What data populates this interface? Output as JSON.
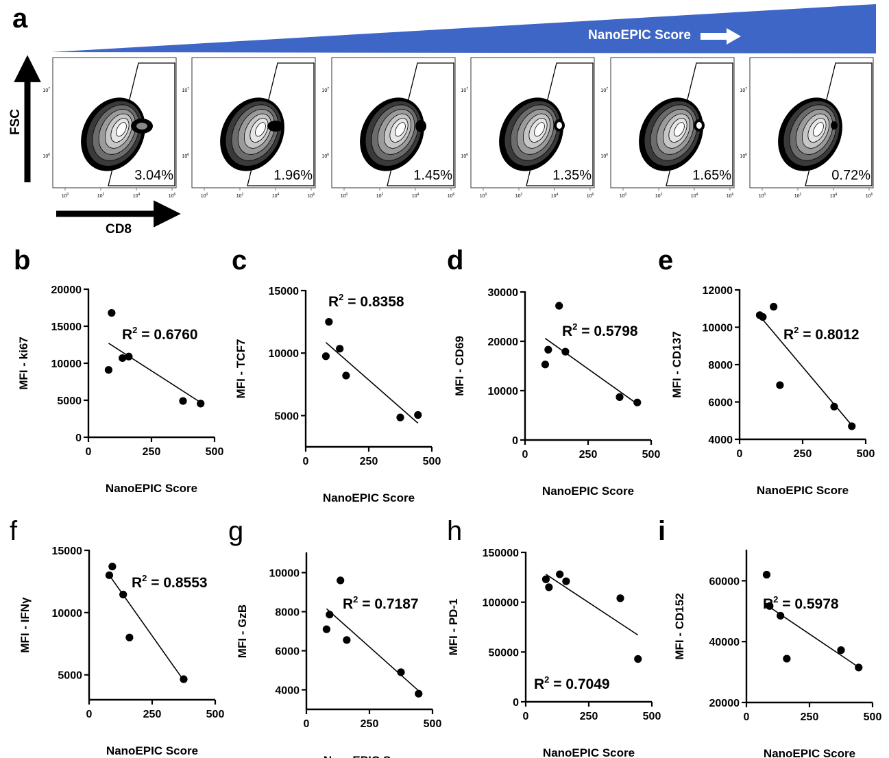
{
  "figure": {
    "panel_a": {
      "letter": "a",
      "banner_label": "NanoEPIC Score",
      "banner_color": "#3d66c6",
      "y_axis_label": "FSC",
      "x_axis_label": "CD8",
      "fsc_ticks": [
        {
          "base": "10",
          "exp": "7"
        },
        {
          "base": "10",
          "exp": "6"
        }
      ],
      "cd8_ticks": [
        {
          "base": "10",
          "exp": "0"
        },
        {
          "base": "10",
          "exp": "2"
        },
        {
          "base": "10",
          "exp": "4"
        },
        {
          "base": "10",
          "exp": "6"
        }
      ],
      "plots": [
        {
          "gate_percent": "3.04%",
          "satellite": "tail"
        },
        {
          "gate_percent": "1.96%",
          "satellite": "tail-small"
        },
        {
          "gate_percent": "1.45%",
          "satellite": "blob"
        },
        {
          "gate_percent": "1.35%",
          "satellite": "ring"
        },
        {
          "gate_percent": "1.65%",
          "satellite": "ring"
        },
        {
          "gate_percent": "0.72%",
          "satellite": "dot"
        }
      ]
    }
  },
  "chart_data": [
    {
      "panel": "b",
      "type": "scatter",
      "xlabel": "NanoEPIC Score",
      "ylabel": "MFI - ki67",
      "xlim": [
        0,
        500
      ],
      "ylim": [
        0,
        20000
      ],
      "xticks": [
        "0",
        "250",
        "500"
      ],
      "yticks": [
        "0",
        "5000",
        "10000",
        "15000",
        "20000"
      ],
      "points": [
        [
          80,
          9100
        ],
        [
          92,
          16800
        ],
        [
          135,
          10700
        ],
        [
          160,
          10900
        ],
        [
          375,
          4900
        ],
        [
          445,
          4550
        ]
      ],
      "fit": [
        [
          80,
          12700
        ],
        [
          445,
          4700
        ]
      ],
      "r2": "0.6760"
    },
    {
      "panel": "c",
      "type": "scatter",
      "xlabel": "NanoEPIC Score",
      "ylabel": "MFI - TCF7",
      "xlim": [
        0,
        500
      ],
      "ylim": [
        2500,
        15000
      ],
      "xticks": [
        "0",
        "250",
        "500"
      ],
      "yticks": [
        "5000",
        "10000",
        "15000"
      ],
      "points": [
        [
          80,
          9750
        ],
        [
          92,
          12500
        ],
        [
          135,
          10350
        ],
        [
          160,
          8200
        ],
        [
          375,
          4850
        ],
        [
          445,
          5050
        ]
      ],
      "fit": [
        [
          80,
          10850
        ],
        [
          445,
          4400
        ]
      ],
      "r2": "0.8358"
    },
    {
      "panel": "d",
      "type": "scatter",
      "xlabel": "NanoEPIC Score",
      "ylabel": "MFI - CD69",
      "xlim": [
        0,
        500
      ],
      "ylim": [
        0,
        30000
      ],
      "xticks": [
        "0",
        "250",
        "500"
      ],
      "yticks": [
        "0",
        "10000",
        "20000",
        "30000"
      ],
      "points": [
        [
          80,
          15300
        ],
        [
          92,
          18300
        ],
        [
          135,
          27200
        ],
        [
          160,
          17900
        ],
        [
          375,
          8700
        ],
        [
          445,
          7600
        ]
      ],
      "fit": [
        [
          80,
          20600
        ],
        [
          445,
          7300
        ]
      ],
      "r2": "0.5798"
    },
    {
      "panel": "e",
      "type": "scatter",
      "xlabel": "NanoEPIC Score",
      "ylabel": "MFI - CD137",
      "xlim": [
        0,
        500
      ],
      "ylim": [
        4000,
        12000
      ],
      "xticks": [
        "0",
        "250",
        "500"
      ],
      "yticks": [
        "4000",
        "6000",
        "8000",
        "10000",
        "12000"
      ],
      "points": [
        [
          80,
          10650
        ],
        [
          92,
          10550
        ],
        [
          135,
          11100
        ],
        [
          160,
          6900
        ],
        [
          375,
          5750
        ],
        [
          445,
          4700
        ]
      ],
      "fit": [
        [
          80,
          10600
        ],
        [
          445,
          4750
        ]
      ],
      "r2": "0.8012"
    },
    {
      "panel": "f",
      "type": "scatter",
      "xlabel": "NanoEPIC Score",
      "ylabel": "MFI - IFNγ",
      "xlim": [
        0,
        500
      ],
      "ylim": [
        3000,
        15000
      ],
      "xticks": [
        "0",
        "250",
        "500"
      ],
      "yticks": [
        "5000",
        "10000",
        "15000"
      ],
      "points": [
        [
          80,
          13000
        ],
        [
          92,
          13700
        ],
        [
          135,
          11450
        ],
        [
          160,
          8000
        ],
        [
          375,
          4650
        ]
      ],
      "fit": [
        [
          80,
          13000
        ],
        [
          375,
          4550
        ]
      ],
      "r2": "0.8553"
    },
    {
      "panel": "g",
      "type": "scatter",
      "xlabel": "NanoEPIC Score",
      "ylabel": "MFI - GzB",
      "xlim": [
        0,
        500
      ],
      "ylim": [
        3000,
        11000
      ],
      "xticks": [
        "0",
        "250",
        "500"
      ],
      "yticks": [
        "4000",
        "6000",
        "8000",
        "10000"
      ],
      "points": [
        [
          80,
          7100
        ],
        [
          92,
          7850
        ],
        [
          135,
          9600
        ],
        [
          160,
          6550
        ],
        [
          375,
          4900
        ],
        [
          445,
          3800
        ]
      ],
      "fit": [
        [
          80,
          8150
        ],
        [
          445,
          3950
        ]
      ],
      "r2": "0.7187"
    },
    {
      "panel": "h",
      "type": "scatter",
      "xlabel": "NanoEPIC Score",
      "ylabel": "MFI - PD-1",
      "xlim": [
        0,
        500
      ],
      "ylim": [
        0,
        150000
      ],
      "xticks": [
        "0",
        "250",
        "500"
      ],
      "yticks": [
        "0",
        "50000",
        "100000",
        "150000"
      ],
      "points": [
        [
          80,
          123000
        ],
        [
          92,
          115000
        ],
        [
          135,
          128000
        ],
        [
          160,
          121000
        ],
        [
          375,
          104000
        ],
        [
          445,
          43000
        ]
      ],
      "fit": [
        [
          80,
          128000
        ],
        [
          445,
          67000
        ]
      ],
      "r2": "0.7049"
    },
    {
      "panel": "i",
      "type": "scatter",
      "xlabel": "NanoEPIC Score",
      "ylabel": "MFI - CD152",
      "xlim": [
        0,
        500
      ],
      "ylim": [
        20000,
        70000
      ],
      "xticks": [
        "0",
        "250",
        "500"
      ],
      "yticks": [
        "20000",
        "40000",
        "60000"
      ],
      "points": [
        [
          80,
          62000
        ],
        [
          92,
          51700
        ],
        [
          135,
          48500
        ],
        [
          160,
          34400
        ],
        [
          375,
          37200
        ],
        [
          445,
          31500
        ]
      ],
      "fit": [
        [
          80,
          52000
        ],
        [
          445,
          31600
        ]
      ],
      "r2": "0.5978"
    }
  ]
}
